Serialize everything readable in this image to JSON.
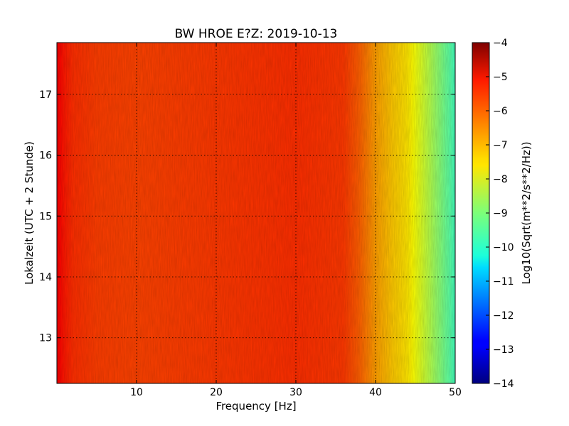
{
  "chart_data": {
    "type": "heatmap",
    "title": "BW HROE E?Z: 2019-10-13",
    "xlabel": "Frequency [Hz]",
    "ylabel": "Lokalzeit (UTC + 2 Stunde)",
    "xlim": [
      0,
      50
    ],
    "ylim": [
      17.85,
      12.25
    ],
    "x_ticks": [
      10,
      20,
      30,
      40,
      50
    ],
    "y_ticks": [
      13,
      14,
      15,
      16,
      17
    ],
    "grid": true,
    "colormap": "jet",
    "colorbar": {
      "label": "Log10(Sqrt(m**2/s**2/Hz))",
      "range": [
        -14,
        -4
      ],
      "ticks": [
        -4,
        -5,
        -6,
        -7,
        -8,
        -9,
        -10,
        -11,
        -12,
        -13,
        -14
      ]
    },
    "spectrum_profile": {
      "frequency_hz": [
        0,
        1,
        2,
        5,
        10,
        20,
        30,
        36,
        38,
        40,
        42,
        44,
        46,
        48,
        50
      ],
      "log10_amplitude": [
        -5.2,
        -5.5,
        -5.7,
        -5.85,
        -5.9,
        -5.8,
        -5.7,
        -5.8,
        -6.2,
        -6.8,
        -7.2,
        -7.5,
        -8.2,
        -8.9,
        -9.6
      ]
    }
  }
}
